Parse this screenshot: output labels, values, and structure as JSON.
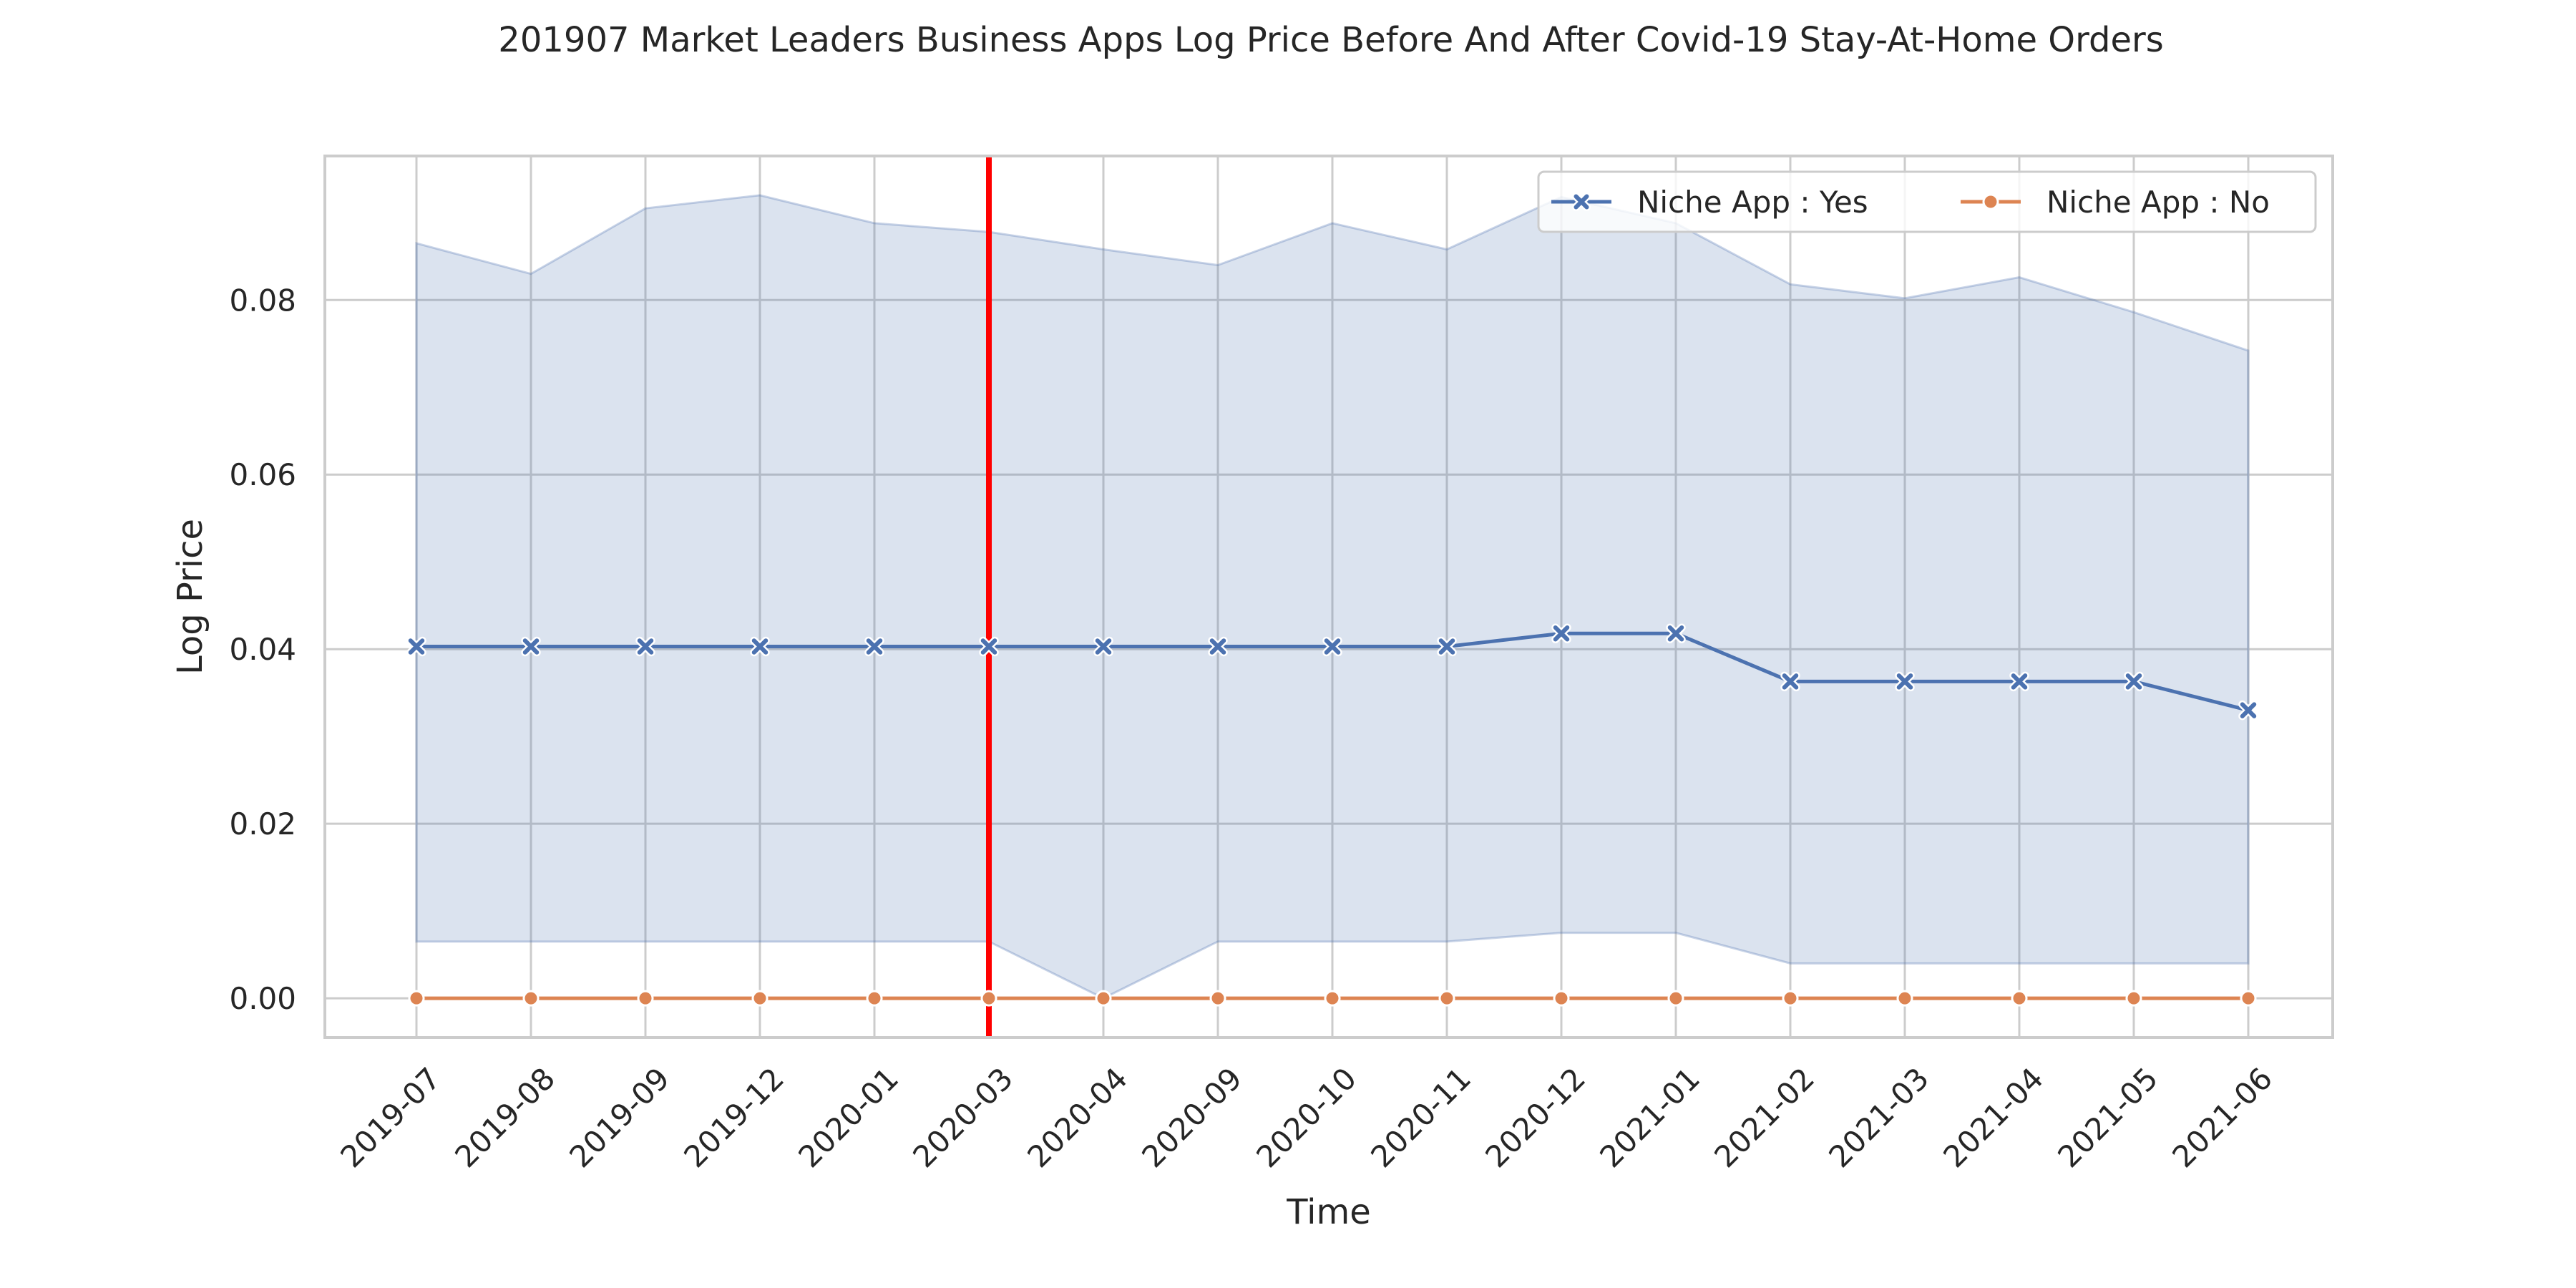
{
  "chart_data": {
    "type": "line",
    "title": "201907 Market Leaders Business Apps Log Price Before And After Covid-19 Stay-At-Home Orders",
    "xlabel": "Time",
    "ylabel": "Log Price",
    "categories": [
      "2019-07",
      "2019-08",
      "2019-09",
      "2019-12",
      "2020-01",
      "2020-03",
      "2020-04",
      "2020-09",
      "2020-10",
      "2020-11",
      "2020-12",
      "2021-01",
      "2021-02",
      "2021-03",
      "2021-04",
      "2021-05",
      "2021-06"
    ],
    "ylim": [
      -0.0045,
      0.0965
    ],
    "yticks": [
      0.0,
      0.02,
      0.04,
      0.06,
      0.08
    ],
    "ytick_labels": [
      "0.00",
      "0.02",
      "0.04",
      "0.06",
      "0.08"
    ],
    "grid": true,
    "legend_position": "top-right",
    "vertical_line": {
      "category": "2020-03",
      "color": "#ff0000"
    },
    "series": [
      {
        "name": "Niche App : Yes",
        "color": "#4c72b0",
        "marker": "x",
        "values": [
          0.0403,
          0.0403,
          0.0403,
          0.0403,
          0.0403,
          0.0403,
          0.0403,
          0.0403,
          0.0403,
          0.0403,
          0.0418,
          0.0418,
          0.0363,
          0.0363,
          0.0363,
          0.0363,
          0.033
        ],
        "ci_lower": [
          0.0065,
          0.0065,
          0.0065,
          0.0065,
          0.0065,
          0.0065,
          0.0,
          0.0065,
          0.0065,
          0.0065,
          0.0075,
          0.0075,
          0.004,
          0.004,
          0.004,
          0.004,
          0.004
        ],
        "ci_upper": [
          0.0865,
          0.083,
          0.0905,
          0.092,
          0.0888,
          0.0878,
          0.0858,
          0.084,
          0.0888,
          0.0858,
          0.0918,
          0.0888,
          0.0818,
          0.0802,
          0.0826,
          0.0786,
          0.0742
        ]
      },
      {
        "name": "Niche App : No",
        "color": "#dd8452",
        "marker": "o",
        "values": [
          0,
          0,
          0,
          0,
          0,
          0,
          0,
          0,
          0,
          0,
          0,
          0,
          0,
          0,
          0,
          0,
          0
        ]
      }
    ]
  }
}
